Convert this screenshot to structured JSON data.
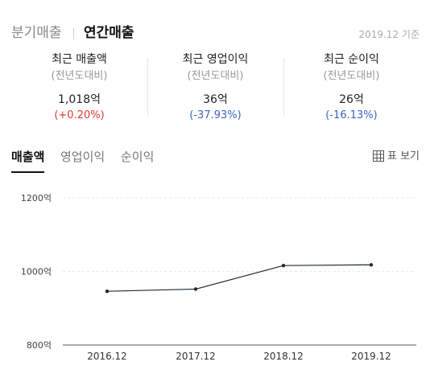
{
  "header": {
    "tab_quarter": "분기매출",
    "tab_annual": "연간매출",
    "as_of": "2019.12 기준"
  },
  "summary": [
    {
      "title": "최근 매출액",
      "subtitle": "(전년도대비)",
      "value": "1,018억",
      "change": "(+0.20%)",
      "change_color": "#e0392e"
    },
    {
      "title": "최근 영업이익",
      "subtitle": "(전년도대비)",
      "value": "36억",
      "change": "(-37.93%)",
      "change_color": "#3b63c7"
    },
    {
      "title": "최근 순이익",
      "subtitle": "(전년도대비)",
      "value": "26억",
      "change": "(-16.13%)",
      "change_color": "#3b63c7"
    }
  ],
  "metric_tabs": [
    "매출액",
    "영업이익",
    "순이익"
  ],
  "active_metric": 0,
  "table_toggle": {
    "icon": "table-grid-icon",
    "label": "표 보기"
  },
  "chart_data": {
    "type": "line",
    "categories": [
      "2016.12",
      "2017.12",
      "2018.12",
      "2019.12"
    ],
    "series": [
      {
        "values": [
          946,
          952,
          1016,
          1018
        ]
      }
    ],
    "ylim": [
      800,
      1200
    ],
    "yticks": [
      "1200억",
      "1000억",
      "800억"
    ],
    "grid": true,
    "line_color": "#1f2a33"
  }
}
